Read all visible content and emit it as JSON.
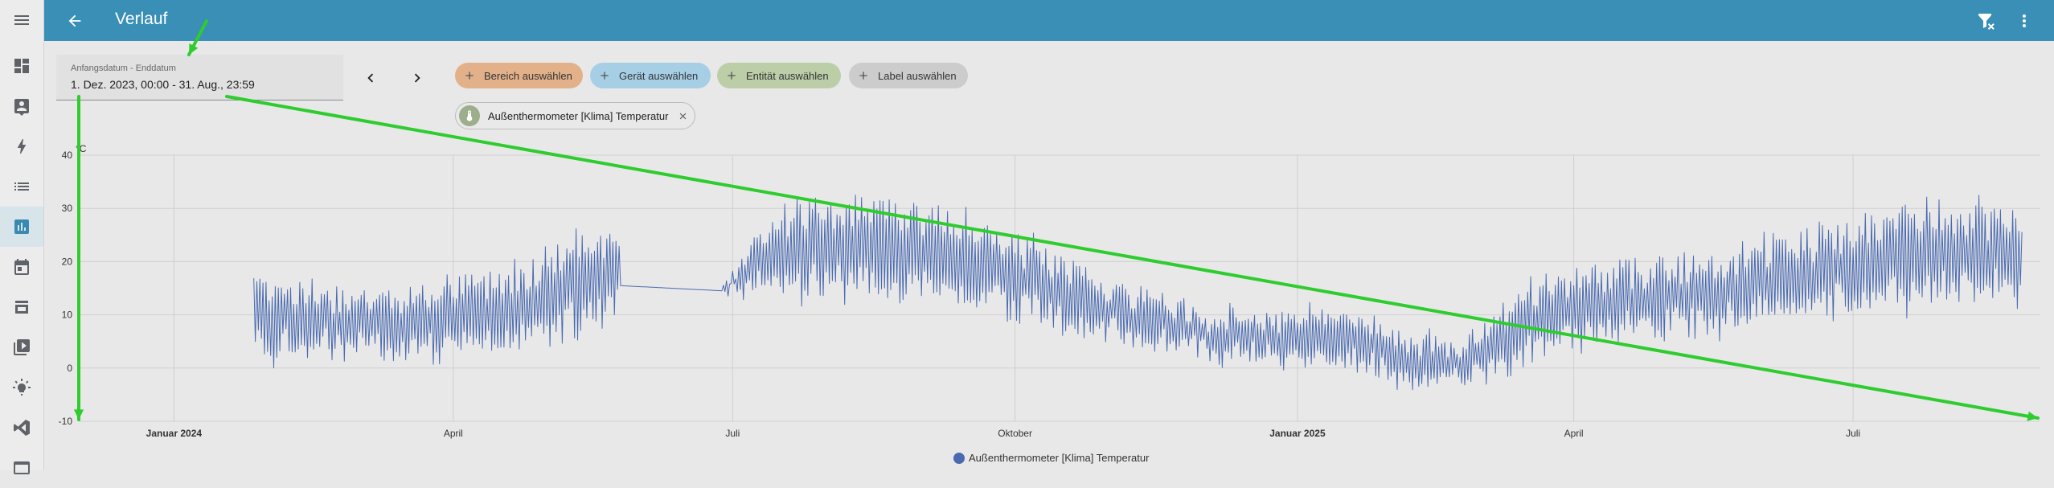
{
  "header": {
    "title": "Verlauf"
  },
  "date_range": {
    "label": "Anfangsdatum - Enddatum",
    "value": "1. Dez. 2023, 00:00 - 31. Aug., 23:59"
  },
  "filters": {
    "area": "Bereich auswählen",
    "device": "Gerät auswählen",
    "entity": "Entität auswählen",
    "label": "Label auswählen"
  },
  "selected_entity": "Außenthermometer [Klima] Temperatur",
  "colors": {
    "header": "#3a8fb7",
    "series": "#4a6ab0",
    "annotation": "#2ecc2e"
  },
  "icons": {
    "sidebar": [
      "menu-icon",
      "dashboard-icon",
      "map-account-icon",
      "energy-icon",
      "logbook-icon",
      "history-icon",
      "calendar-icon",
      "media-browser-icon",
      "media-player-icon",
      "bulb-icon",
      "vscode-icon",
      "terminal-icon"
    ],
    "toolbar": [
      "filter-remove-icon",
      "more-vert-icon"
    ]
  },
  "chart_data": {
    "type": "line",
    "unit": "°C",
    "ylim": [
      -10,
      40
    ],
    "y_ticks": [
      "40",
      "30",
      "20",
      "10",
      "0",
      "-10"
    ],
    "x_tick_labels": [
      "Januar 2024",
      "April",
      "Juli",
      "Oktober",
      "Januar 2025",
      "April",
      "Juli"
    ],
    "x_tick_bold": [
      true,
      false,
      false,
      false,
      true,
      false,
      false
    ],
    "grid": true,
    "legend_position": "bottom",
    "series": [
      {
        "name": "Außenthermometer [Klima] Temperatur",
        "x": [
          "2024-01-27",
          "2024-02-15",
          "2024-03-15",
          "2024-04-10",
          "2024-05-01",
          "2024-05-25",
          "2024-06-10",
          "2024-06-28",
          "2024-07-15",
          "2024-08-05",
          "2024-08-25",
          "2024-09-10",
          "2024-09-25",
          "2024-10-10",
          "2024-10-25",
          "2024-11-15",
          "2024-12-05",
          "2024-12-25",
          "2025-01-15",
          "2025-02-05",
          "2025-02-25",
          "2025-03-15",
          "2025-04-05",
          "2025-04-25",
          "2025-05-15",
          "2025-06-05",
          "2025-06-25",
          "2025-07-15",
          "2025-08-05",
          "2025-08-25"
        ],
        "y": [
          10,
          9,
          8,
          10,
          13,
          19,
          15,
          15,
          22,
          23,
          23,
          21,
          18,
          16,
          12,
          9,
          6,
          6,
          6,
          2,
          1,
          8,
          12,
          13,
          14,
          17,
          18,
          20,
          22,
          21
        ],
        "amplitude": [
          10,
          7,
          7,
          8,
          10,
          10,
          0,
          0,
          9,
          10,
          10,
          10,
          8,
          8,
          6,
          5,
          5,
          5,
          6,
          5,
          4,
          8,
          8,
          8,
          8,
          8,
          9,
          11,
          10,
          9
        ]
      }
    ],
    "gap_flat": {
      "x_start": "2024-05-25",
      "x_end": "2024-06-28",
      "y_start": 15.5,
      "y_end": 14.5
    }
  }
}
